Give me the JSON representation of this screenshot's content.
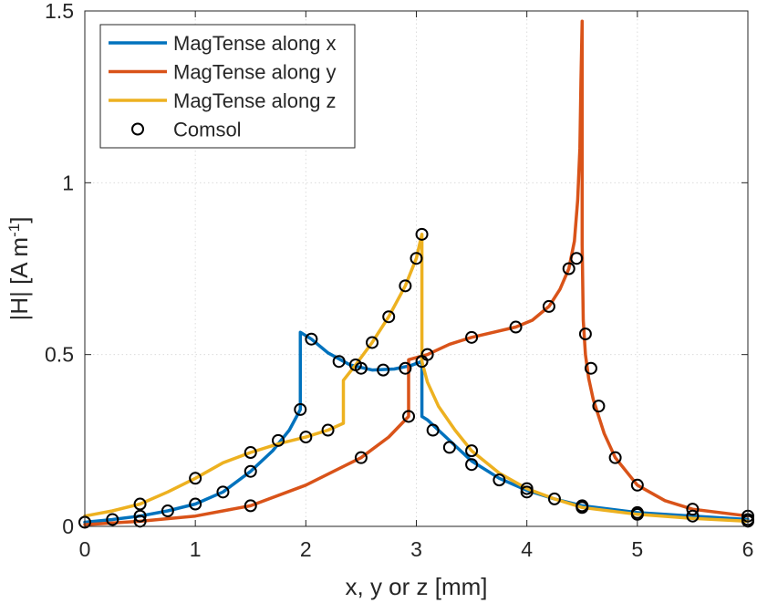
{
  "chart_data": {
    "type": "line",
    "title": "",
    "xlabel": "x, y or z [mm]",
    "ylabel": "|H| [A m",
    "ylabel_superscript": "-1",
    "ylabel_suffix": "]",
    "xlim": [
      0,
      6
    ],
    "ylim": [
      0,
      1.5
    ],
    "xticks": [
      0,
      1,
      2,
      3,
      4,
      5,
      6
    ],
    "xtick_labels": [
      "0",
      "1",
      "2",
      "3",
      "4",
      "5",
      "6"
    ],
    "yticks": [
      0,
      0.5,
      1,
      1.5
    ],
    "ytick_labels": [
      "0",
      "0.5",
      "1",
      "1.5"
    ],
    "grid": true,
    "legend_position": "top-left",
    "colors": {
      "x": "#0072BD",
      "y": "#D95319",
      "z": "#EDB120",
      "comsol": "#000000"
    },
    "series": [
      {
        "name": "MagTense along x",
        "color": "#0072BD",
        "x": [
          0,
          0.25,
          0.5,
          0.75,
          1.0,
          1.25,
          1.5,
          1.7,
          1.85,
          1.95,
          1.95,
          2.05,
          2.2,
          2.4,
          2.6,
          2.8,
          2.95,
          3.05,
          3.05,
          3.1,
          3.2,
          3.35,
          3.5,
          3.75,
          4.0,
          4.25,
          4.5,
          5.0,
          5.5,
          6.0
        ],
        "y": [
          0.012,
          0.02,
          0.03,
          0.045,
          0.065,
          0.1,
          0.16,
          0.22,
          0.28,
          0.34,
          0.565,
          0.545,
          0.505,
          0.47,
          0.455,
          0.458,
          0.468,
          0.48,
          0.32,
          0.31,
          0.28,
          0.235,
          0.19,
          0.14,
          0.105,
          0.08,
          0.06,
          0.04,
          0.03,
          0.02
        ]
      },
      {
        "name": "MagTense along y",
        "color": "#D95319",
        "x": [
          0,
          0.5,
          1.0,
          1.5,
          2.0,
          2.5,
          2.75,
          2.93,
          2.93,
          3.1,
          3.3,
          3.5,
          3.7,
          3.9,
          4.05,
          4.2,
          4.3,
          4.38,
          4.43,
          4.46,
          4.48,
          4.49,
          4.5,
          4.5,
          4.51,
          4.53,
          4.56,
          4.6,
          4.7,
          4.8,
          5.0,
          5.25,
          5.5,
          6.0
        ],
        "y": [
          0.005,
          0.015,
          0.03,
          0.06,
          0.12,
          0.2,
          0.26,
          0.32,
          0.485,
          0.5,
          0.53,
          0.55,
          0.565,
          0.58,
          0.6,
          0.64,
          0.69,
          0.75,
          0.83,
          0.95,
          1.1,
          1.3,
          1.47,
          0.82,
          0.6,
          0.5,
          0.43,
          0.37,
          0.27,
          0.2,
          0.12,
          0.075,
          0.05,
          0.03
        ]
      },
      {
        "name": "MagTense along z",
        "color": "#EDB120",
        "x": [
          0,
          0.25,
          0.5,
          0.75,
          1.0,
          1.25,
          1.5,
          1.75,
          2.0,
          2.2,
          2.34,
          2.34,
          2.45,
          2.6,
          2.75,
          2.9,
          3.0,
          3.05,
          3.05,
          3.1,
          3.2,
          3.35,
          3.5,
          3.75,
          4.0,
          4.25,
          4.5,
          5.0,
          5.5,
          6.0
        ],
        "y": [
          0.03,
          0.045,
          0.065,
          0.1,
          0.14,
          0.185,
          0.215,
          0.24,
          0.26,
          0.28,
          0.3,
          0.425,
          0.47,
          0.535,
          0.61,
          0.7,
          0.78,
          0.85,
          0.48,
          0.42,
          0.35,
          0.28,
          0.22,
          0.155,
          0.11,
          0.08,
          0.055,
          0.035,
          0.023,
          0.015
        ]
      },
      {
        "name": "Comsol",
        "color": "#000000",
        "marker": "circle",
        "x": [
          0,
          0.25,
          0.5,
          0.75,
          1.0,
          1.25,
          1.5,
          1.75,
          1.95,
          2.05,
          2.3,
          2.5,
          2.7,
          2.9,
          3.05,
          3.15,
          3.3,
          3.5,
          3.75,
          4.0,
          4.25,
          4.5,
          5.0,
          5.5,
          6.0,
          0.5,
          1.0,
          1.5,
          2.0,
          2.2,
          2.45,
          2.6,
          2.75,
          2.9,
          3.0,
          3.05,
          3.5,
          4.0,
          4.5,
          5.0,
          6.0,
          0.5,
          1.5,
          2.5,
          2.93,
          3.1,
          3.5,
          3.9,
          4.2,
          4.38,
          4.45,
          4.53,
          4.58,
          4.65,
          4.8,
          5.0,
          5.5,
          6.0
        ],
        "y": [
          0.012,
          0.02,
          0.03,
          0.045,
          0.065,
          0.1,
          0.16,
          0.25,
          0.34,
          0.545,
          0.48,
          0.46,
          0.455,
          0.46,
          0.48,
          0.28,
          0.23,
          0.18,
          0.135,
          0.1,
          0.08,
          0.06,
          0.04,
          0.03,
          0.02,
          0.065,
          0.14,
          0.215,
          0.26,
          0.28,
          0.47,
          0.535,
          0.61,
          0.7,
          0.78,
          0.85,
          0.22,
          0.11,
          0.055,
          0.035,
          0.015,
          0.015,
          0.06,
          0.2,
          0.32,
          0.5,
          0.55,
          0.58,
          0.64,
          0.75,
          0.78,
          0.56,
          0.46,
          0.35,
          0.2,
          0.12,
          0.05,
          0.03
        ]
      }
    ]
  }
}
